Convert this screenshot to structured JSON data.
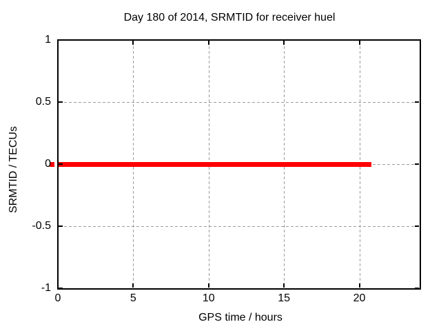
{
  "chart_data": {
    "type": "line",
    "title": "Day 180 of 2014, SRMTID for receiver huel",
    "xlabel": "GPS time / hours",
    "ylabel": "SRMTID / TECUs",
    "xlim": [
      0,
      24
    ],
    "ylim": [
      -1,
      1
    ],
    "xticks": {
      "values": [
        0,
        5,
        10,
        15,
        20
      ],
      "labels": [
        "0",
        "5",
        "10",
        "15",
        "20"
      ]
    },
    "yticks": {
      "values": [
        -1,
        -0.5,
        0,
        0.5,
        1
      ],
      "labels": [
        "-1",
        "-0.5",
        "0",
        "0.5",
        "1"
      ]
    },
    "grid": true,
    "legend": "none",
    "series": [
      {
        "name": "SRMTID",
        "color": "#ff0000",
        "x": [
          0,
          20.8
        ],
        "y": [
          0,
          0
        ]
      }
    ],
    "colors": {
      "line": "#ff0000",
      "grid": "#9b9b9b",
      "border": "#000000",
      "text": "#000000",
      "background": "#ffffff"
    }
  }
}
